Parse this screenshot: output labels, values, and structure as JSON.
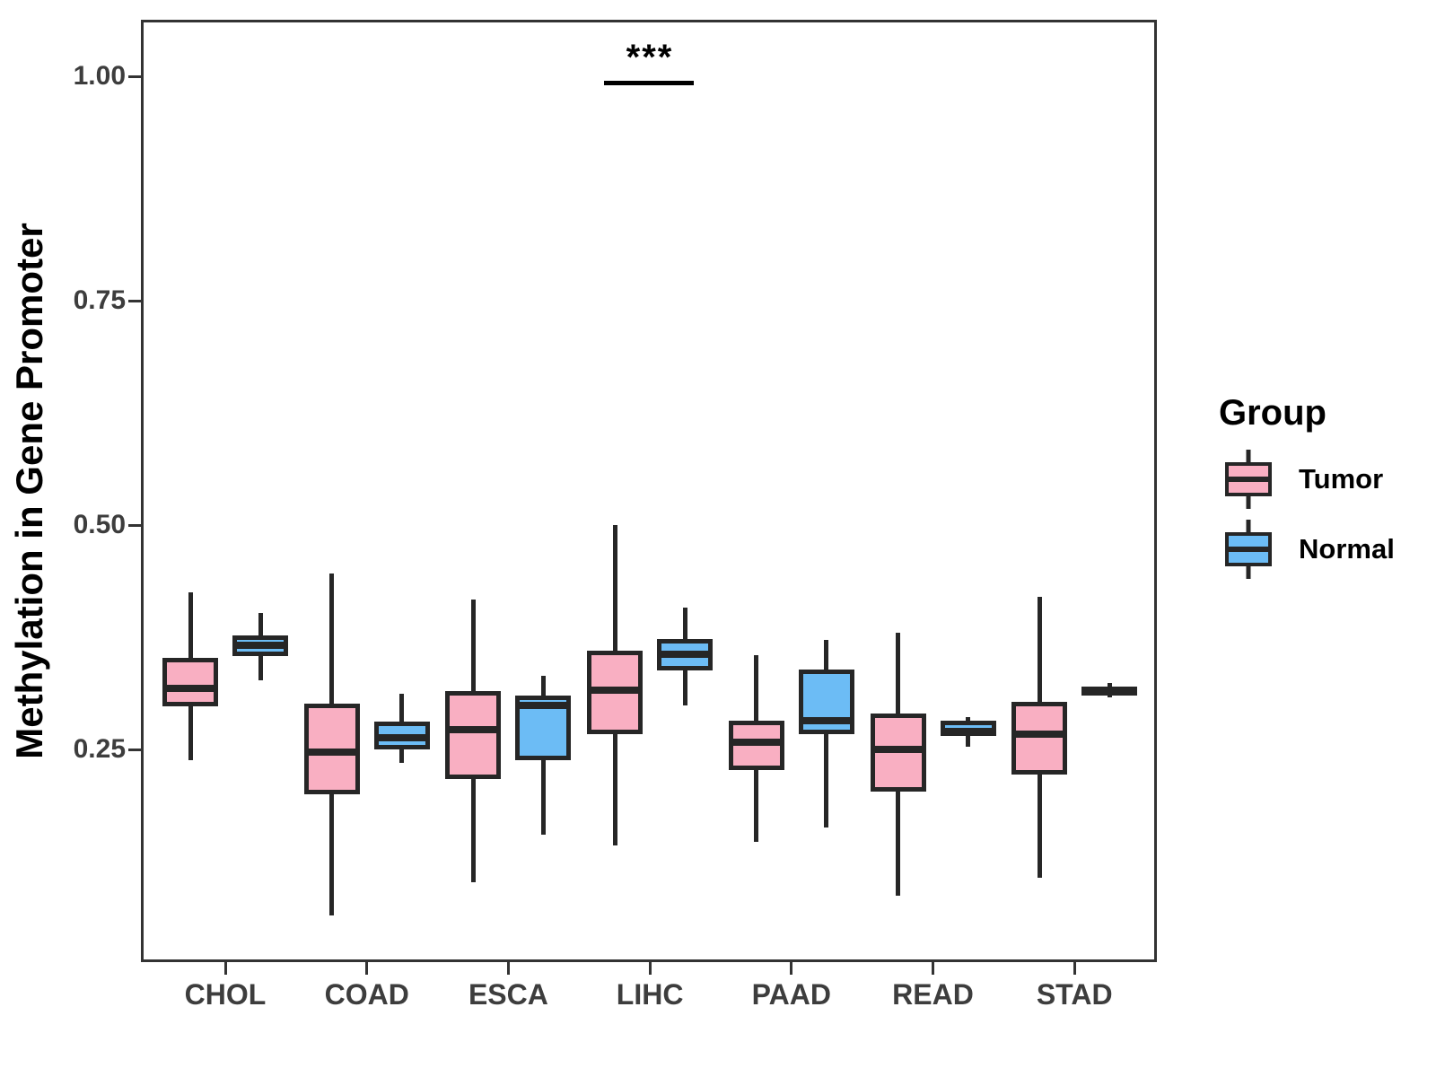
{
  "chart_data": {
    "type": "boxplot",
    "title": "",
    "xlabel": "",
    "ylabel": "Methylation in Gene Promoter",
    "categories": [
      "CHOL",
      "COAD",
      "ESCA",
      "LIHC",
      "PAAD",
      "READ",
      "STAD"
    ],
    "yticks": [
      "0.25",
      "0.50",
      "0.75",
      "1.00"
    ],
    "ytick_values": [
      0.25,
      0.5,
      0.75,
      1.0
    ],
    "ylim": [
      0.013,
      1.063
    ],
    "grid": "off",
    "legend": {
      "title": "Group",
      "position": "right",
      "entries": [
        {
          "label": "Tumor",
          "color": "#F9AFC2"
        },
        {
          "label": "Normal",
          "color": "#6CBCF5"
        }
      ]
    },
    "colors": {
      "tumor_fill": "#F9AFC2",
      "normal_fill": "#6CBCF5",
      "line": "#262626",
      "panel_border": "#333333",
      "tick_label": "#3d3d3d"
    },
    "annotation": {
      "text": "***",
      "category": "LIHC",
      "line_y": 0.993
    },
    "series": [
      {
        "name": "Tumor",
        "color": "#F9AFC2",
        "boxes": [
          {
            "category": "CHOL",
            "min": 0.238,
            "q1": 0.298,
            "median": 0.318,
            "q3": 0.352,
            "max": 0.425
          },
          {
            "category": "COAD",
            "min": 0.065,
            "q1": 0.2,
            "median": 0.247,
            "q3": 0.301,
            "max": 0.446
          },
          {
            "category": "ESCA",
            "min": 0.102,
            "q1": 0.217,
            "median": 0.272,
            "q3": 0.315,
            "max": 0.417
          },
          {
            "category": "LIHC",
            "min": 0.143,
            "q1": 0.267,
            "median": 0.316,
            "q3": 0.36,
            "max": 0.5
          },
          {
            "category": "PAAD",
            "min": 0.147,
            "q1": 0.227,
            "median": 0.258,
            "q3": 0.282,
            "max": 0.355
          },
          {
            "category": "READ",
            "min": 0.087,
            "q1": 0.203,
            "median": 0.25,
            "q3": 0.29,
            "max": 0.38
          },
          {
            "category": "STAD",
            "min": 0.107,
            "q1": 0.222,
            "median": 0.267,
            "q3": 0.303,
            "max": 0.42
          }
        ]
      },
      {
        "name": "Normal",
        "color": "#6CBCF5",
        "boxes": [
          {
            "category": "CHOL",
            "min": 0.327,
            "q1": 0.354,
            "median": 0.366,
            "q3": 0.377,
            "max": 0.402
          },
          {
            "category": "COAD",
            "min": 0.235,
            "q1": 0.25,
            "median": 0.263,
            "q3": 0.281,
            "max": 0.312
          },
          {
            "category": "ESCA",
            "min": 0.155,
            "q1": 0.238,
            "median": 0.299,
            "q3": 0.31,
            "max": 0.332
          },
          {
            "category": "LIHC",
            "min": 0.299,
            "q1": 0.338,
            "median": 0.356,
            "q3": 0.373,
            "max": 0.408
          },
          {
            "category": "PAAD",
            "min": 0.163,
            "q1": 0.267,
            "median": 0.282,
            "q3": 0.339,
            "max": 0.372
          },
          {
            "category": "READ",
            "min": 0.253,
            "q1": 0.265,
            "median": 0.27,
            "q3": 0.282,
            "max": 0.286
          },
          {
            "category": "STAD",
            "min": 0.308,
            "q1": 0.311,
            "median": 0.315,
            "q3": 0.32,
            "max": 0.324
          }
        ]
      }
    ]
  }
}
